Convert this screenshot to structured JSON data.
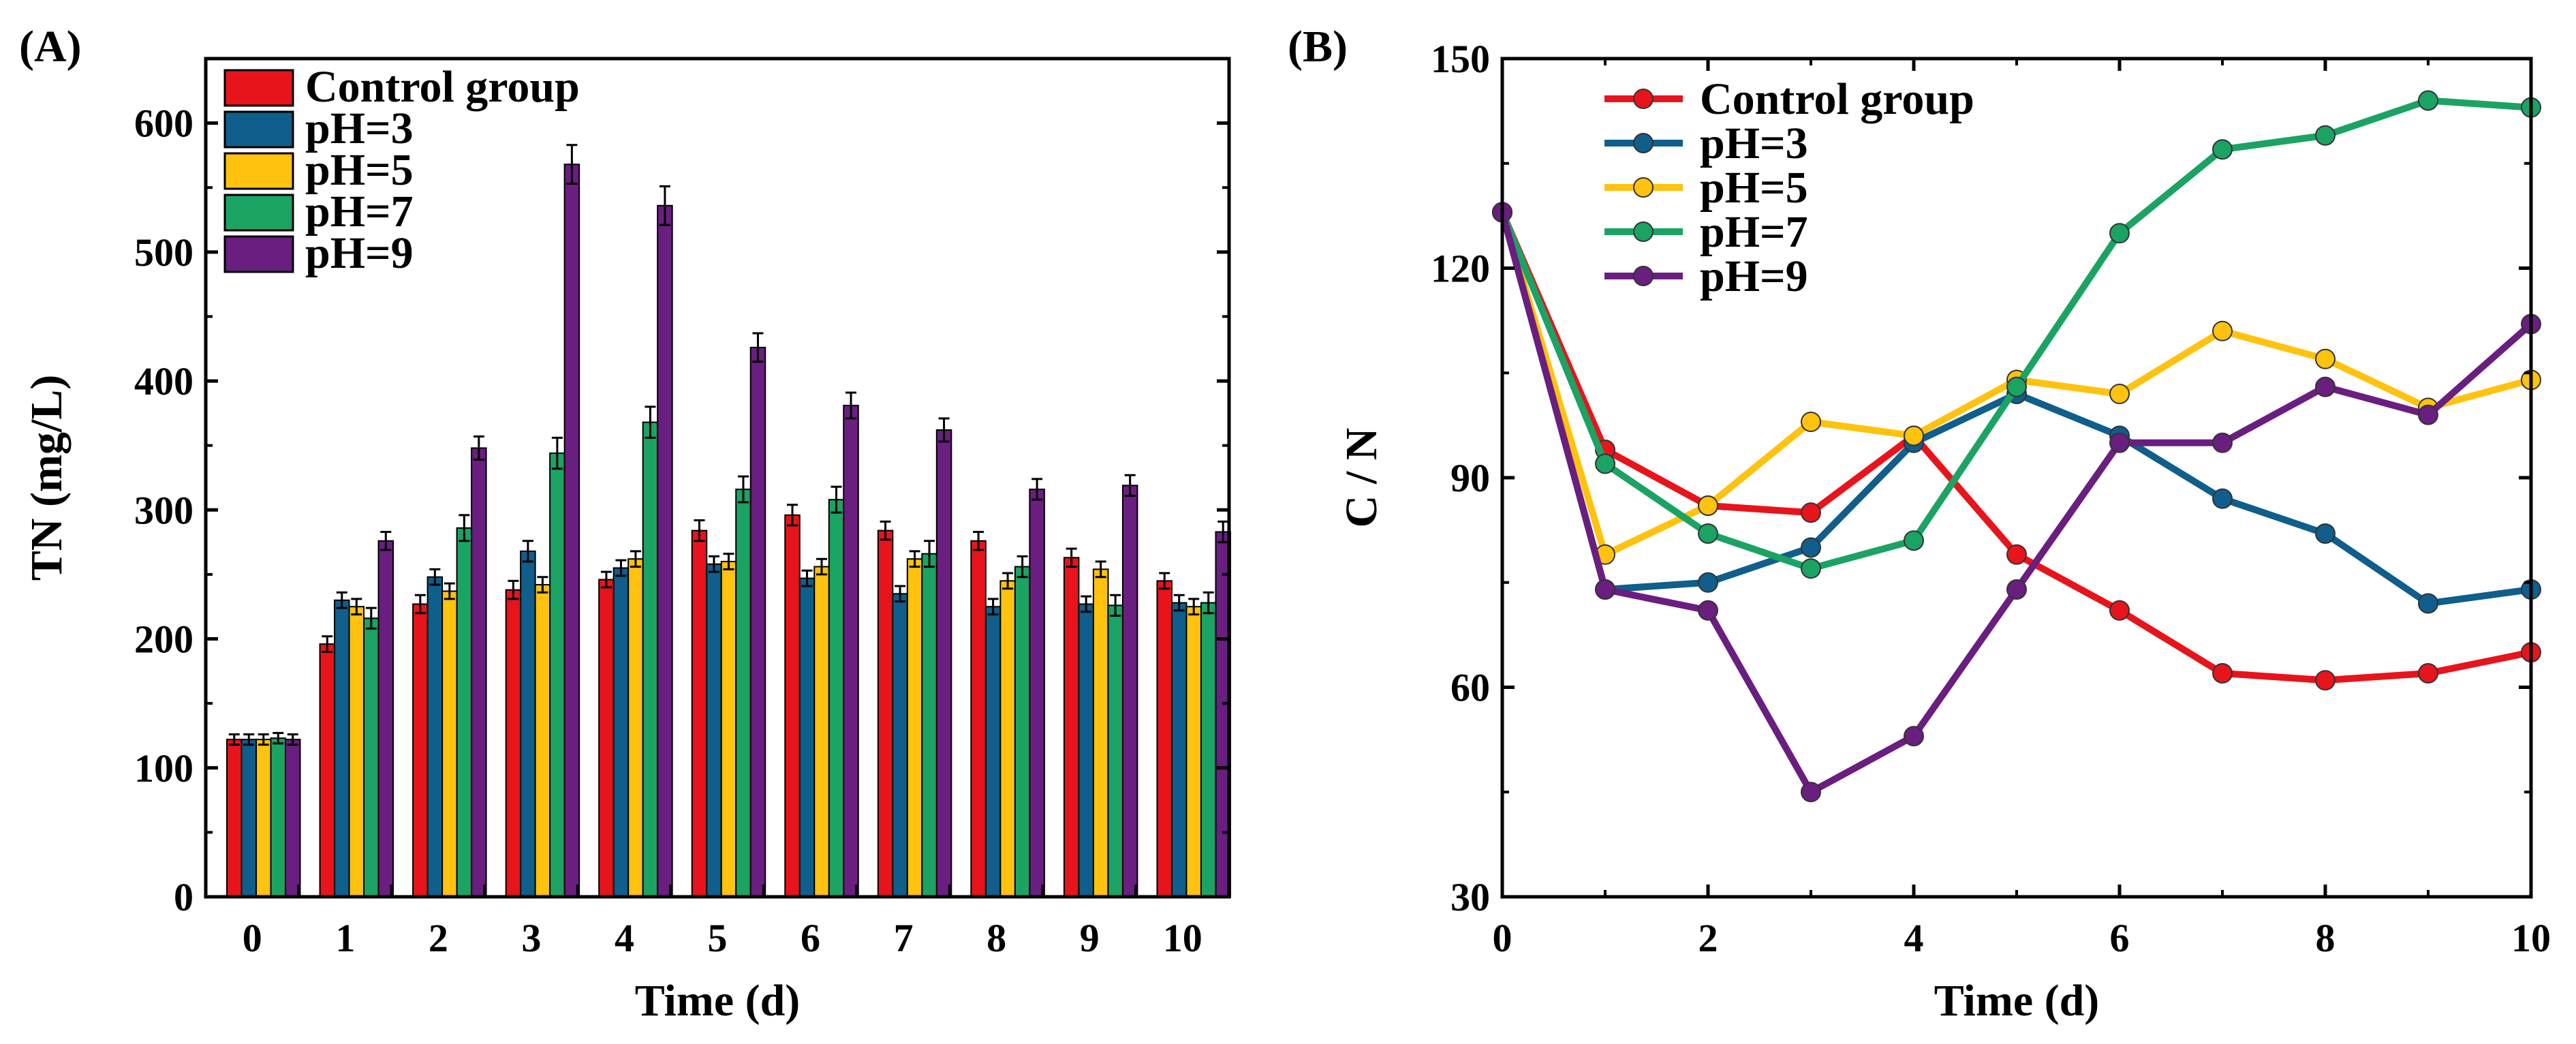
{
  "chart_data": [
    {
      "type": "bar",
      "panel_label": "(A)",
      "xlabel": "Time (d)",
      "ylabel": "TN (mg/L)",
      "ylim": [
        0,
        650
      ],
      "yticks": [
        "0",
        "100",
        "200",
        "300",
        "400",
        "500",
        "600"
      ],
      "categories": [
        "0",
        "1",
        "2",
        "3",
        "4",
        "5",
        "6",
        "7",
        "8",
        "9",
        "10"
      ],
      "legend_position": "top-left",
      "grid": false,
      "series": [
        {
          "name": "Control group",
          "color": "#E8141C",
          "values": [
            122,
            196,
            227,
            238,
            246,
            284,
            296,
            284,
            276,
            263,
            245
          ],
          "errors": [
            4,
            6,
            7,
            7,
            6,
            8,
            8,
            7,
            7,
            7,
            6
          ]
        },
        {
          "name": "pH=3",
          "color": "#0F5E8C",
          "values": [
            122,
            230,
            248,
            268,
            255,
            258,
            247,
            235,
            225,
            227,
            228
          ],
          "errors": [
            4,
            6,
            6,
            8,
            6,
            6,
            6,
            6,
            6,
            6,
            6
          ]
        },
        {
          "name": "pH=5",
          "color": "#FFC20E",
          "values": [
            122,
            225,
            237,
            242,
            262,
            260,
            256,
            262,
            245,
            254,
            225
          ],
          "errors": [
            4,
            6,
            6,
            6,
            6,
            6,
            6,
            6,
            6,
            6,
            6
          ]
        },
        {
          "name": "pH=7",
          "color": "#1BA364",
          "values": [
            123,
            216,
            286,
            344,
            368,
            316,
            308,
            266,
            256,
            226,
            228
          ],
          "errors": [
            4,
            8,
            10,
            12,
            12,
            10,
            10,
            10,
            8,
            8,
            8
          ]
        },
        {
          "name": "pH=9",
          "color": "#6A1E80",
          "values": [
            122,
            276,
            348,
            568,
            536,
            426,
            381,
            362,
            316,
            319,
            283
          ],
          "errors": [
            4,
            7,
            9,
            15,
            15,
            11,
            10,
            9,
            8,
            8,
            8
          ]
        }
      ]
    },
    {
      "type": "line",
      "panel_label": "(B)",
      "xlabel": "Time (d)",
      "ylabel": "C / N",
      "xlim": [
        0,
        10
      ],
      "ylim": [
        30,
        150
      ],
      "xticks": [
        "0",
        "2",
        "4",
        "6",
        "8",
        "10"
      ],
      "yticks": [
        "30",
        "60",
        "90",
        "120",
        "150"
      ],
      "x": [
        0,
        1,
        2,
        3,
        4,
        5,
        6,
        7,
        8,
        9,
        10
      ],
      "legend_position": "top-left",
      "grid": false,
      "series": [
        {
          "name": "Control group",
          "color": "#E8141C",
          "values": [
            128,
            94,
            86,
            85,
            96,
            79,
            71,
            62,
            61,
            62,
            65
          ]
        },
        {
          "name": "pH=3",
          "color": "#0F5E8C",
          "values": [
            128,
            74,
            75,
            80,
            95,
            102,
            96,
            87,
            82,
            72,
            74
          ]
        },
        {
          "name": "pH=5",
          "color": "#FFC20E",
          "values": [
            128,
            79,
            86,
            98,
            96,
            104,
            102,
            111,
            107,
            100,
            104
          ]
        },
        {
          "name": "pH=7",
          "color": "#1BA364",
          "values": [
            128,
            92,
            82,
            77,
            81,
            103,
            125,
            137,
            139,
            144,
            143
          ]
        },
        {
          "name": "pH=9",
          "color": "#6A1E80",
          "values": [
            128,
            74,
            71,
            45,
            53,
            74,
            95,
            95,
            103,
            99,
            112
          ]
        }
      ]
    }
  ]
}
